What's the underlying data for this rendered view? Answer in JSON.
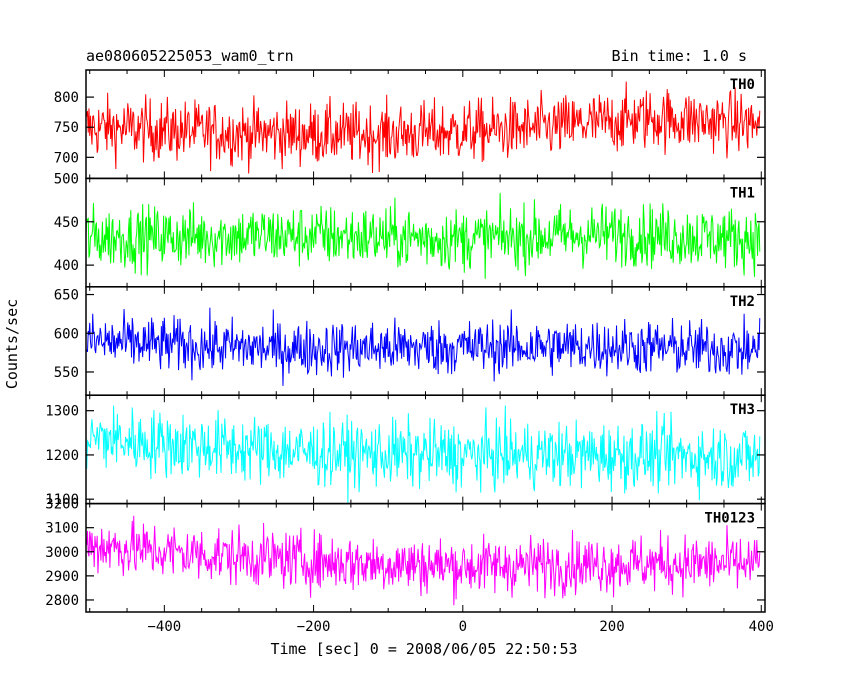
{
  "chart_data": {
    "type": "line",
    "title": "ae080605225053_wam0_trn",
    "subtitle": "Bin time: 1.0 s",
    "xlabel": "Time [sec] 0 = 2008/06/05 22:50:53",
    "ylabel": "Counts/sec",
    "xlim": [
      -505,
      405
    ],
    "x_ticks": [
      -400,
      -200,
      0,
      200,
      400
    ],
    "x_tick_labels": [
      "−400",
      "−200",
      "0",
      "200",
      "400"
    ],
    "panels": [
      {
        "name": "TH0",
        "color": "#ff0000",
        "ylim": [
          665,
          845
        ],
        "ticks": [
          700,
          750,
          800
        ],
        "tick_labels": [
          "700",
          "750",
          "800"
        ],
        "mean": 748,
        "noise": 26,
        "trend": [
          [
            -505,
            750
          ],
          [
            -300,
            740
          ],
          [
            -100,
            738
          ],
          [
            100,
            748
          ],
          [
            250,
            765
          ],
          [
            400,
            755
          ]
        ]
      },
      {
        "name": "TH1",
        "color": "#00ff00",
        "ylim": [
          375,
          500
        ],
        "ticks": [
          400,
          450,
          500
        ],
        "tick_labels": [
          "400",
          "450",
          "500"
        ],
        "mean": 432,
        "noise": 18,
        "trend": [
          [
            -505,
            432
          ],
          [
            -200,
            434
          ],
          [
            0,
            430
          ],
          [
            200,
            436
          ],
          [
            400,
            430
          ]
        ]
      },
      {
        "name": "TH2",
        "color": "#0000ff",
        "ylim": [
          520,
          660
        ],
        "ticks": [
          550,
          600,
          650
        ],
        "tick_labels": [
          "550",
          "600",
          "650"
        ],
        "mean": 583,
        "noise": 18,
        "trend": [
          [
            -505,
            590
          ],
          [
            -400,
            585
          ],
          [
            -240,
            580
          ],
          [
            0,
            582
          ],
          [
            200,
            583
          ],
          [
            400,
            578
          ]
        ]
      },
      {
        "name": "TH3",
        "color": "#00ffff",
        "ylim": [
          1090,
          1335
        ],
        "ticks": [
          1100,
          1200,
          1300
        ],
        "tick_labels": [
          "1100",
          "1200",
          "1300"
        ],
        "mean": 1210,
        "noise": 38,
        "trend": [
          [
            -505,
            1240
          ],
          [
            -400,
            1225
          ],
          [
            -200,
            1205
          ],
          [
            0,
            1200
          ],
          [
            200,
            1200
          ],
          [
            400,
            1195
          ]
        ]
      },
      {
        "name": "TH0123",
        "color": "#ff00ff",
        "ylim": [
          2750,
          3200
        ],
        "ticks": [
          2800,
          2900,
          3000,
          3100,
          3200
        ],
        "tick_labels": [
          "2800",
          "2900",
          "3000",
          "3100",
          "3200"
        ],
        "mean": 2960,
        "noise": 60,
        "trend": [
          [
            -505,
            3030
          ],
          [
            -400,
            3000
          ],
          [
            -200,
            2960
          ],
          [
            0,
            2940
          ],
          [
            200,
            2950
          ],
          [
            400,
            2950
          ]
        ]
      }
    ],
    "grid": false,
    "legend": "none"
  }
}
